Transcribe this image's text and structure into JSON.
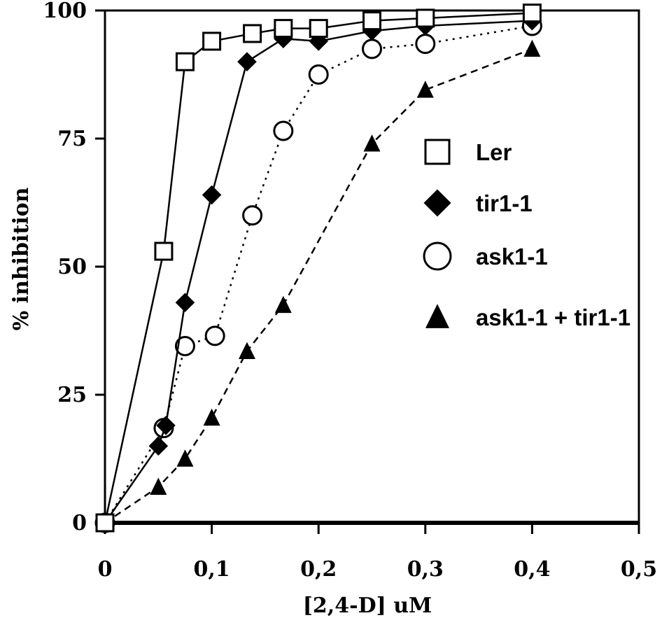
{
  "chart_data": {
    "type": "line",
    "title": "",
    "xlabel": "[2,4-D] uM",
    "ylabel": "% inhibition",
    "xlim": [
      0,
      0.5
    ],
    "ylim": [
      0,
      100
    ],
    "x_ticks": [
      "0",
      "0,1",
      "0,2",
      "0,3",
      "0,4",
      "0,5"
    ],
    "y_ticks": [
      "0",
      "25",
      "50",
      "75",
      "100"
    ],
    "grid": false,
    "legend_position": "right",
    "series": [
      {
        "name": "Ler",
        "marker": "open-square",
        "line_style": "solid",
        "points": [
          [
            0,
            0
          ],
          [
            0.055,
            53
          ],
          [
            0.075,
            90
          ],
          [
            0.1,
            94
          ],
          [
            0.138,
            95.5
          ],
          [
            0.167,
            96.5
          ],
          [
            0.2,
            96.5
          ],
          [
            0.25,
            98
          ],
          [
            0.3,
            98.5
          ],
          [
            0.4,
            99.5
          ]
        ]
      },
      {
        "name": "tir1-1",
        "marker": "filled-diamond",
        "line_style": "solid",
        "points": [
          [
            0,
            0
          ],
          [
            0.05,
            15
          ],
          [
            0.057,
            19
          ],
          [
            0.075,
            43
          ],
          [
            0.1,
            64
          ],
          [
            0.133,
            90
          ],
          [
            0.167,
            94.5
          ],
          [
            0.2,
            94
          ],
          [
            0.25,
            96
          ],
          [
            0.3,
            97
          ],
          [
            0.4,
            98
          ]
        ]
      },
      {
        "name": "ask1-1",
        "marker": "open-circle",
        "line_style": "dotted",
        "points": [
          [
            0,
            0
          ],
          [
            0.055,
            18.5
          ],
          [
            0.075,
            34.5
          ],
          [
            0.103,
            36.5
          ],
          [
            0.138,
            60
          ],
          [
            0.167,
            76.5
          ],
          [
            0.2,
            87.5
          ],
          [
            0.25,
            92.5
          ],
          [
            0.3,
            93.5
          ],
          [
            0.4,
            97
          ]
        ]
      },
      {
        "name": "ask1-1 + tir1-1",
        "marker": "filled-triangle",
        "line_style": "dashed",
        "points": [
          [
            0,
            0
          ],
          [
            0.05,
            7
          ],
          [
            0.075,
            12.5
          ],
          [
            0.1,
            20.5
          ],
          [
            0.133,
            33.5
          ],
          [
            0.167,
            42.5
          ],
          [
            0.25,
            74
          ],
          [
            0.3,
            84.5
          ],
          [
            0.4,
            92.5
          ]
        ]
      }
    ]
  }
}
